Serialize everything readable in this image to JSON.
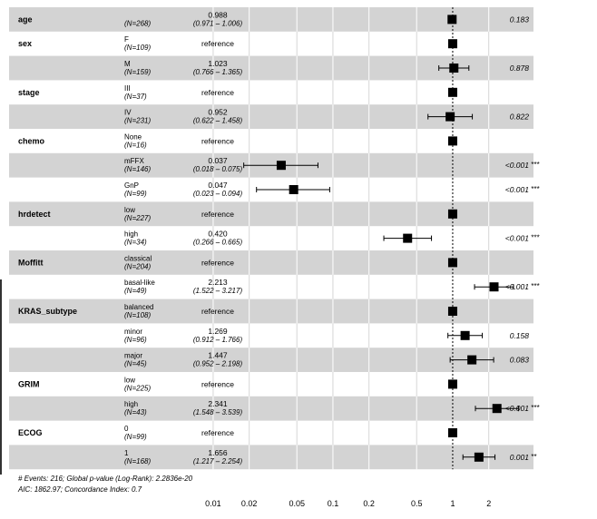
{
  "chart_data": {
    "type": "forest",
    "x_scale": "log",
    "xlim": [
      0.0095,
      2.9
    ],
    "x_ticks": [
      0.01,
      0.02,
      0.05,
      0.1,
      0.2,
      0.5,
      1,
      2
    ],
    "x_tick_labels": [
      "0.01",
      "0.02",
      "0.05",
      "0.1",
      "0.2",
      "0.5",
      "1",
      "2"
    ],
    "reference_line": 1,
    "grid": true,
    "band_color": "#d3d3d3",
    "rows": [
      {
        "variable": "age",
        "level": "",
        "n": "(N=268)",
        "hr": 0.988,
        "lo": 0.971,
        "hi": 1.006,
        "est_text": "0.988",
        "ci_text": "(0.971 – 1.006)",
        "p": "0.183",
        "stars": "",
        "shaded": true,
        "reference": false
      },
      {
        "variable": "sex",
        "level": "F",
        "n": "(N=109)",
        "hr": 1,
        "lo": null,
        "hi": null,
        "est_text": "reference",
        "ci_text": "",
        "p": "",
        "stars": "",
        "shaded": false,
        "reference": true
      },
      {
        "variable": "",
        "level": "M",
        "n": "(N=159)",
        "hr": 1.023,
        "lo": 0.766,
        "hi": 1.365,
        "est_text": "1.023",
        "ci_text": "(0.766 – 1.365)",
        "p": "0.878",
        "stars": "",
        "shaded": true,
        "reference": false
      },
      {
        "variable": "stage",
        "level": "III",
        "n": "(N=37)",
        "hr": 1,
        "lo": null,
        "hi": null,
        "est_text": "reference",
        "ci_text": "",
        "p": "",
        "stars": "",
        "shaded": false,
        "reference": true
      },
      {
        "variable": "",
        "level": "IV",
        "n": "(N=231)",
        "hr": 0.952,
        "lo": 0.622,
        "hi": 1.458,
        "est_text": "0.952",
        "ci_text": "(0.622 – 1.458)",
        "p": "0.822",
        "stars": "",
        "shaded": true,
        "reference": false
      },
      {
        "variable": "chemo",
        "level": "None",
        "n": "(N=16)",
        "hr": 1,
        "lo": null,
        "hi": null,
        "est_text": "reference",
        "ci_text": "",
        "p": "",
        "stars": "",
        "shaded": false,
        "reference": true
      },
      {
        "variable": "",
        "level": "mFFX",
        "n": "(N=146)",
        "hr": 0.037,
        "lo": 0.018,
        "hi": 0.075,
        "est_text": "0.037",
        "ci_text": "(0.018 – 0.075)",
        "p": "<0.001",
        "stars": "***",
        "shaded": true,
        "reference": false
      },
      {
        "variable": "",
        "level": "GnP",
        "n": "(N=99)",
        "hr": 0.047,
        "lo": 0.023,
        "hi": 0.094,
        "est_text": "0.047",
        "ci_text": "(0.023 – 0.094)",
        "p": "<0.001",
        "stars": "***",
        "shaded": false,
        "reference": false
      },
      {
        "variable": "hrdetect",
        "level": "low",
        "n": "(N=227)",
        "hr": 1,
        "lo": null,
        "hi": null,
        "est_text": "reference",
        "ci_text": "",
        "p": "",
        "stars": "",
        "shaded": true,
        "reference": true
      },
      {
        "variable": "",
        "level": "high",
        "n": "(N=34)",
        "hr": 0.42,
        "lo": 0.266,
        "hi": 0.665,
        "est_text": "0.420",
        "ci_text": "(0.266 – 0.665)",
        "p": "<0.001",
        "stars": "***",
        "shaded": false,
        "reference": false
      },
      {
        "variable": "Moffitt",
        "level": "classical",
        "n": "(N=204)",
        "hr": 1,
        "lo": null,
        "hi": null,
        "est_text": "reference",
        "ci_text": "",
        "p": "",
        "stars": "",
        "shaded": true,
        "reference": true
      },
      {
        "variable": "",
        "level": "basal-like",
        "n": "(N=49)",
        "hr": 2.213,
        "lo": 1.522,
        "hi": 3.217,
        "est_text": "2.213",
        "ci_text": "(1.522 – 3.217)",
        "p": "<0.001",
        "stars": "***",
        "shaded": false,
        "reference": false
      },
      {
        "variable": "KRAS_subtype",
        "level": "balanced",
        "n": "(N=108)",
        "hr": 1,
        "lo": null,
        "hi": null,
        "est_text": "reference",
        "ci_text": "",
        "p": "",
        "stars": "",
        "shaded": true,
        "reference": true
      },
      {
        "variable": "",
        "level": "minor",
        "n": "(N=96)",
        "hr": 1.269,
        "lo": 0.912,
        "hi": 1.766,
        "est_text": "1.269",
        "ci_text": "(0.912 – 1.766)",
        "p": "0.158",
        "stars": "",
        "shaded": false,
        "reference": false
      },
      {
        "variable": "",
        "level": "major",
        "n": "(N=45)",
        "hr": 1.447,
        "lo": 0.952,
        "hi": 2.198,
        "est_text": "1.447",
        "ci_text": "(0.952 – 2.198)",
        "p": "0.083",
        "stars": "",
        "shaded": true,
        "reference": false
      },
      {
        "variable": "GRIM",
        "level": "low",
        "n": "(N=225)",
        "hr": 1,
        "lo": null,
        "hi": null,
        "est_text": "reference",
        "ci_text": "",
        "p": "",
        "stars": "",
        "shaded": false,
        "reference": true
      },
      {
        "variable": "",
        "level": "high",
        "n": "(N=43)",
        "hr": 2.341,
        "lo": 1.548,
        "hi": 3.539,
        "est_text": "2.341",
        "ci_text": "(1.548 – 3.539)",
        "p": "<0.001",
        "stars": "***",
        "shaded": true,
        "reference": false
      },
      {
        "variable": "ECOG",
        "level": "0",
        "n": "(N=99)",
        "hr": 1,
        "lo": null,
        "hi": null,
        "est_text": "reference",
        "ci_text": "",
        "p": "",
        "stars": "",
        "shaded": false,
        "reference": true
      },
      {
        "variable": "",
        "level": "1",
        "n": "(N=168)",
        "hr": 1.656,
        "lo": 1.217,
        "hi": 2.254,
        "est_text": "1.656",
        "ci_text": "(1.217 – 2.254)",
        "p": "0.001",
        "stars": "**",
        "shaded": true,
        "reference": false
      }
    ],
    "footer": [
      "# Events: 216; Global p-value (Log-Rank): 2.2836e-20",
      "AIC: 1862.97; Concordance Index: 0.7"
    ]
  }
}
